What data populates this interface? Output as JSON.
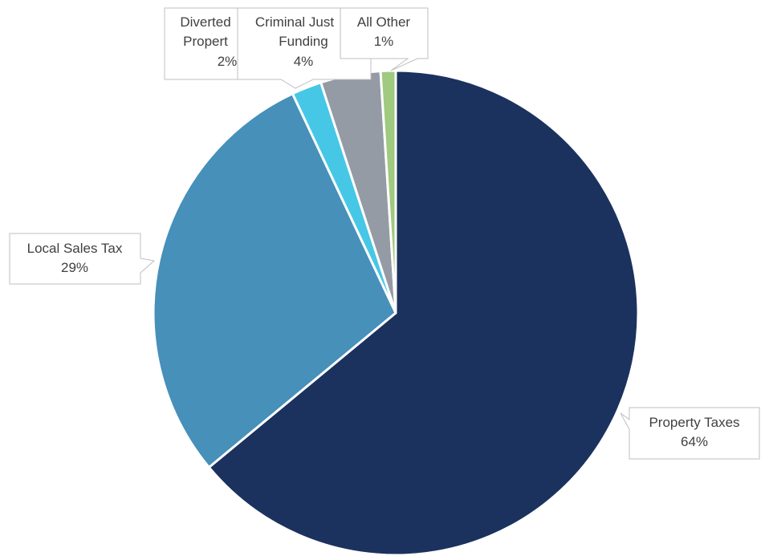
{
  "chart_data": {
    "type": "pie",
    "title": "",
    "start_angle_deg": 0,
    "direction": "clockwise",
    "slices": [
      {
        "name": "Property Taxes",
        "value": 64,
        "pct_label": "64%",
        "color": "#1b325e"
      },
      {
        "name": "Local Sales Tax",
        "value": 29,
        "pct_label": "29%",
        "color": "#4690ba"
      },
      {
        "name": "Diverted Property",
        "value": 2,
        "pct_label": "2%",
        "color": "#47c7e6"
      },
      {
        "name": "Criminal Justice Funding",
        "value": 4,
        "pct_label": "4%",
        "color": "#949ba5"
      },
      {
        "name": "All Other",
        "value": 1,
        "pct_label": "1%",
        "color": "#9fca7f"
      }
    ],
    "labels": {
      "property_taxes": {
        "line1": "Property Taxes",
        "line2": "64%"
      },
      "local_sales_tax": {
        "line1": "Local Sales Tax",
        "line2": "29%"
      },
      "diverted": {
        "line1": "Diverted",
        "line2": "Propert",
        "line3": "2%"
      },
      "criminal_justice": {
        "line1": "Criminal Just",
        "line2": "Funding",
        "line3": "4%"
      },
      "all_other": {
        "line1": "All Other",
        "line2": "1%"
      }
    }
  }
}
